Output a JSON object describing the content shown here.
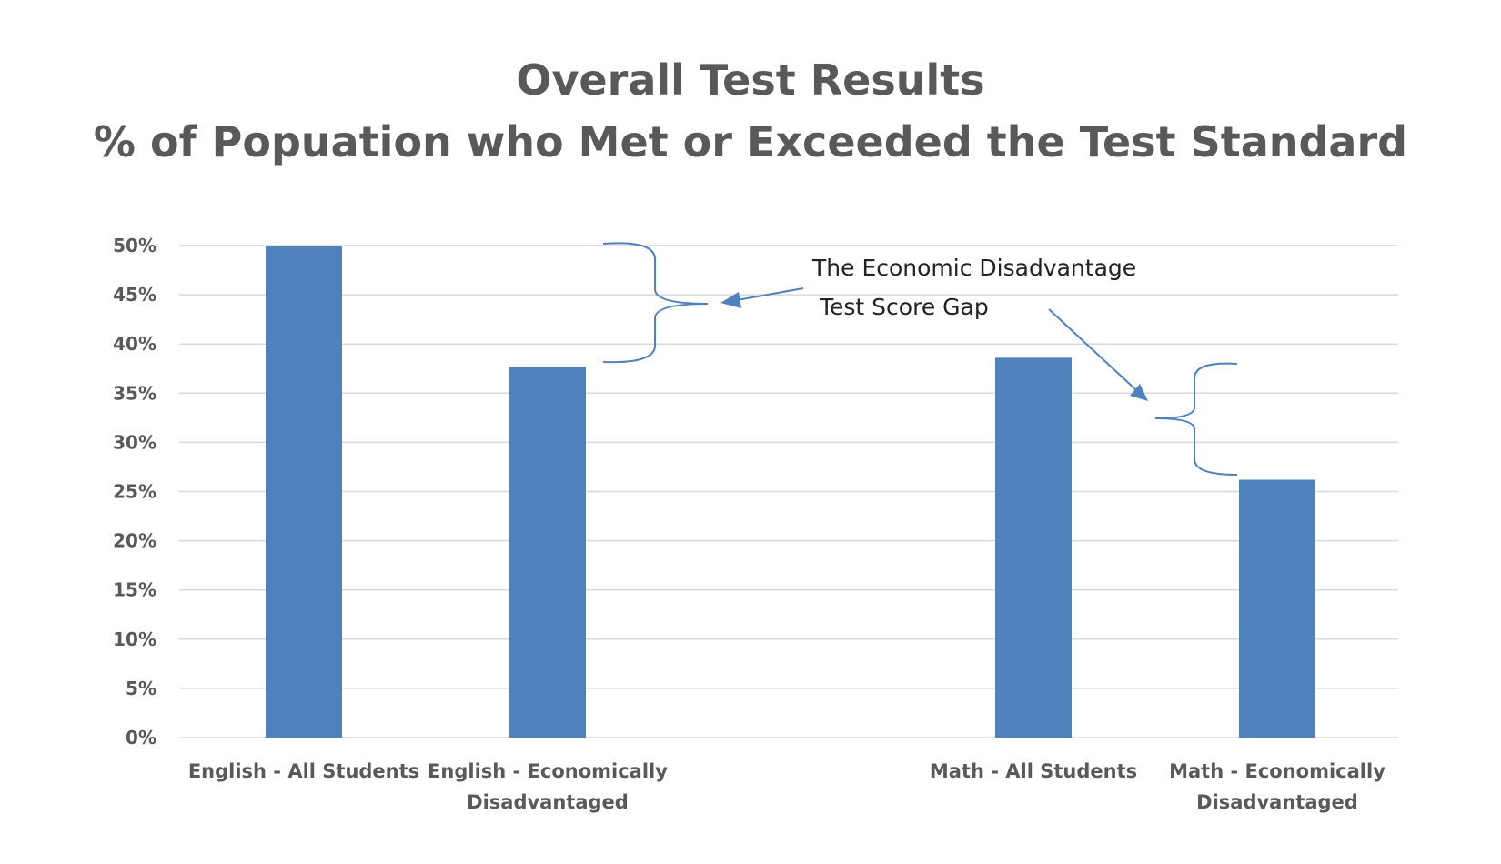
{
  "chart_data": {
    "type": "bar",
    "title": "Overall Test Results",
    "subtitle": "% of Popuation who Met or Exceeded the Test Standard",
    "categories": [
      [
        "English - All Students"
      ],
      [
        "English - Economically",
        "Disadvantaged"
      ],
      [
        "Math - All Students"
      ],
      [
        "Math - Economically",
        "Disadvantaged"
      ]
    ],
    "values": [
      50,
      37.7,
      38.6,
      26.2
    ],
    "ylim": [
      0,
      50
    ],
    "yticks": [
      0,
      5,
      10,
      15,
      20,
      25,
      30,
      35,
      40,
      45,
      50
    ],
    "ytick_labels": [
      "0%",
      "5%",
      "10%",
      "15%",
      "20%",
      "25%",
      "30%",
      "35%",
      "40%",
      "45%",
      "50%"
    ],
    "grid": true,
    "bar_color": "#4f81bd",
    "annotation": {
      "lines": [
        "The Economic Disadvantage",
        "Test Score Gap"
      ],
      "color": "#4f81bd"
    }
  }
}
